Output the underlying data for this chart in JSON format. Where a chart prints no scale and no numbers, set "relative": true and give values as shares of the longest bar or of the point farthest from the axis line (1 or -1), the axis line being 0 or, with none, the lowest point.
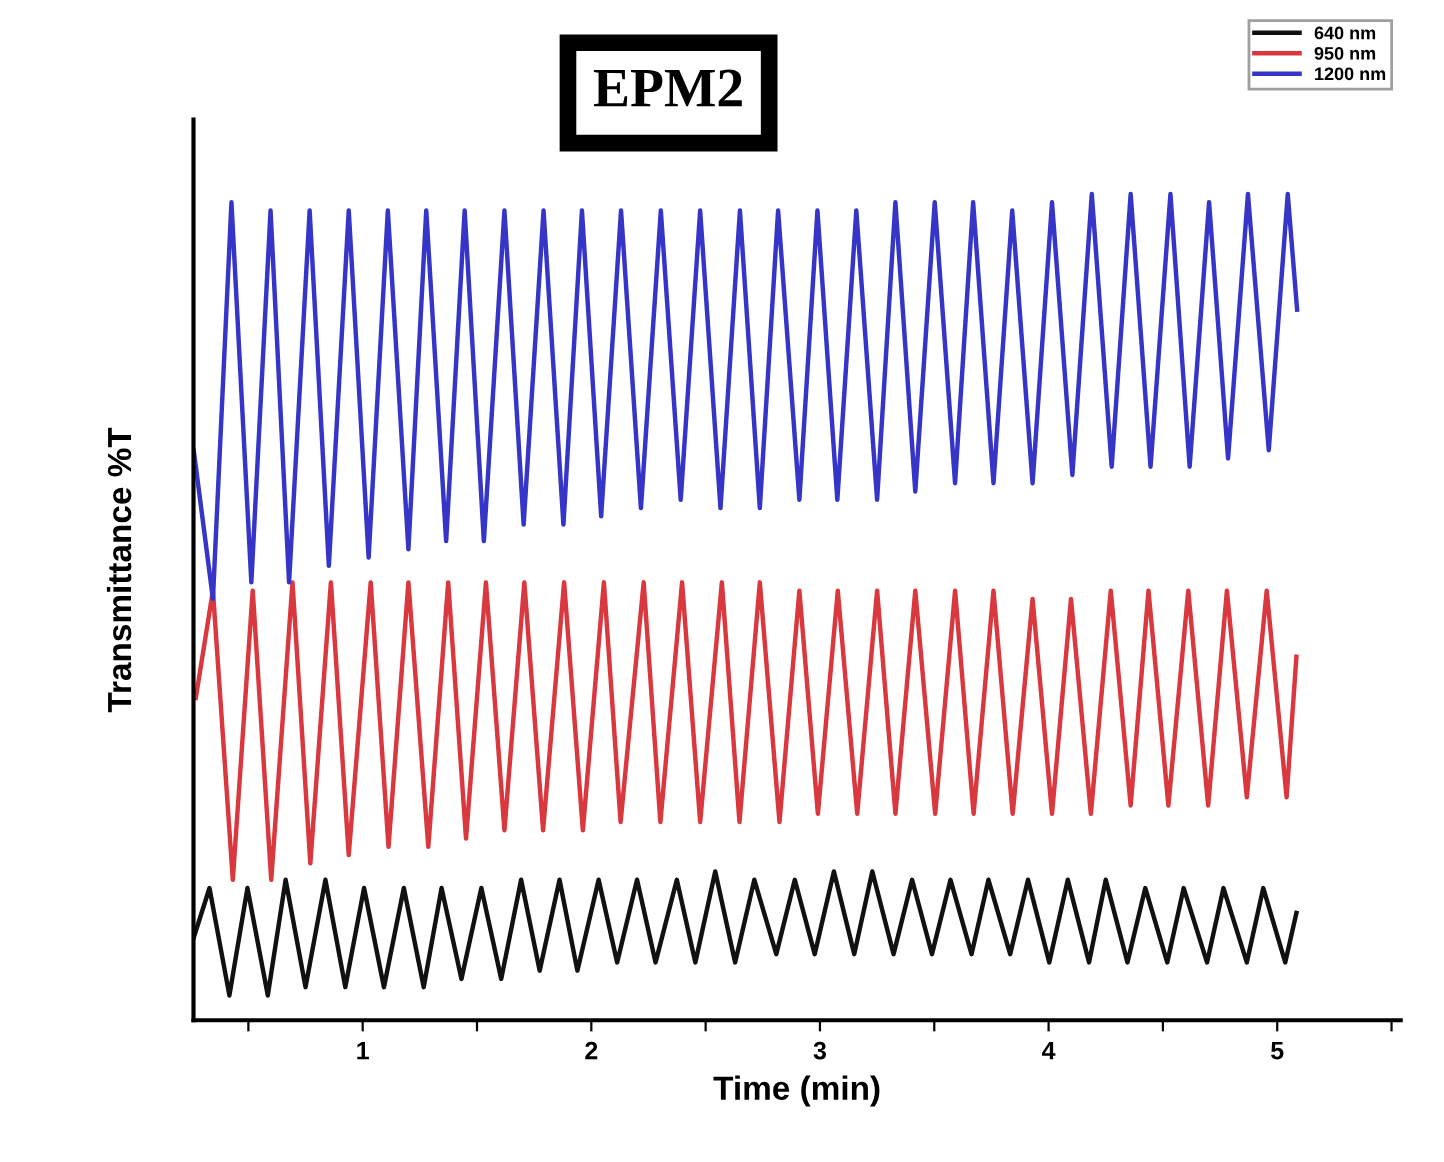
{
  "chart_data": {
    "type": "line",
    "title": "EPM2",
    "xlabel": "Time (min)",
    "ylabel": "Transmittance %T",
    "relative": true,
    "xlim": [
      0.26,
      5.54
    ],
    "xticks": [
      {
        "value": 0.5,
        "label": null
      },
      1,
      {
        "value": 1.5,
        "label": null
      },
      2,
      {
        "value": 2.5,
        "label": null
      },
      3,
      {
        "value": 3.5,
        "label": null
      },
      4,
      {
        "value": 4.5,
        "label": null
      },
      5,
      {
        "value": 5.5,
        "label": null
      }
    ],
    "legend": "top right",
    "grid": false,
    "line_style": "solid",
    "marker": "none",
    "series": [
      {
        "name": "640 nm",
        "color": "#111111",
        "x": [
          0.261,
          0.33,
          0.417,
          0.496,
          0.585,
          0.663,
          0.75,
          0.837,
          0.924,
          1.006,
          1.093,
          1.18,
          1.267,
          1.345,
          1.432,
          1.519,
          1.606,
          1.693,
          1.774,
          1.861,
          1.939,
          2.032,
          2.113,
          2.2,
          2.281,
          2.374,
          2.455,
          2.542,
          2.629,
          2.713,
          2.809,
          2.89,
          2.977,
          3.061,
          3.15,
          3.229,
          3.322,
          3.403,
          3.49,
          3.571,
          3.663,
          3.737,
          3.832,
          3.91,
          4.003,
          4.084,
          4.177,
          4.25,
          4.345,
          4.423,
          4.519,
          4.591,
          4.693,
          4.765,
          4.867,
          4.939,
          5.035,
          5.084
        ],
        "values": [
          0.1,
          0.16,
          0.03,
          0.16,
          0.03,
          0.17,
          0.04,
          0.17,
          0.04,
          0.16,
          0.04,
          0.16,
          0.04,
          0.16,
          0.05,
          0.16,
          0.05,
          0.17,
          0.06,
          0.17,
          0.06,
          0.17,
          0.07,
          0.17,
          0.07,
          0.17,
          0.07,
          0.18,
          0.07,
          0.17,
          0.08,
          0.17,
          0.08,
          0.18,
          0.08,
          0.18,
          0.08,
          0.17,
          0.08,
          0.17,
          0.08,
          0.17,
          0.08,
          0.17,
          0.07,
          0.17,
          0.07,
          0.17,
          0.07,
          0.16,
          0.07,
          0.16,
          0.07,
          0.16,
          0.07,
          0.16,
          0.07,
          0.13
        ]
      },
      {
        "name": "950 nm",
        "color": "#d9383f",
        "x": [
          0.27,
          0.345,
          0.432,
          0.519,
          0.6,
          0.693,
          0.771,
          0.861,
          0.939,
          1.035,
          1.113,
          1.2,
          1.287,
          1.374,
          1.452,
          1.539,
          1.62,
          1.707,
          1.789,
          1.881,
          1.963,
          2.055,
          2.128,
          2.229,
          2.302,
          2.397,
          2.476,
          2.571,
          2.648,
          2.737,
          2.823,
          2.91,
          2.991,
          3.078,
          3.163,
          3.25,
          3.33,
          3.417,
          3.504,
          3.591,
          3.672,
          3.759,
          3.843,
          3.93,
          4.015,
          4.098,
          4.185,
          4.272,
          4.359,
          4.437,
          4.524,
          4.611,
          4.698,
          4.78,
          4.867,
          4.954,
          5.041,
          5.084
        ],
        "values": [
          0.39,
          0.52,
          0.17,
          0.52,
          0.17,
          0.53,
          0.19,
          0.53,
          0.2,
          0.53,
          0.21,
          0.53,
          0.21,
          0.53,
          0.22,
          0.53,
          0.23,
          0.53,
          0.23,
          0.53,
          0.23,
          0.53,
          0.24,
          0.53,
          0.24,
          0.53,
          0.24,
          0.53,
          0.24,
          0.53,
          0.24,
          0.52,
          0.25,
          0.52,
          0.25,
          0.52,
          0.25,
          0.52,
          0.25,
          0.52,
          0.25,
          0.52,
          0.25,
          0.51,
          0.25,
          0.51,
          0.25,
          0.52,
          0.26,
          0.52,
          0.26,
          0.52,
          0.26,
          0.52,
          0.27,
          0.52,
          0.27,
          0.44
        ]
      },
      {
        "name": "1200 nm",
        "color": "#3535c8",
        "x": [
          0.261,
          0.345,
          0.426,
          0.513,
          0.597,
          0.678,
          0.768,
          0.852,
          0.939,
          1.026,
          1.11,
          1.2,
          1.278,
          1.365,
          1.446,
          1.53,
          1.62,
          1.704,
          1.791,
          1.878,
          1.959,
          2.043,
          2.13,
          2.217,
          2.304,
          2.391,
          2.476,
          2.565,
          2.65,
          2.737,
          2.817,
          2.91,
          2.989,
          3.076,
          3.159,
          3.25,
          3.33,
          3.417,
          3.502,
          3.591,
          3.67,
          3.759,
          3.841,
          3.93,
          4.015,
          4.104,
          4.189,
          4.276,
          4.359,
          4.446,
          4.533,
          4.617,
          4.702,
          4.785,
          4.872,
          4.963,
          5.046,
          5.087
        ],
        "values": [
          0.69,
          0.51,
          0.99,
          0.53,
          0.98,
          0.53,
          0.98,
          0.55,
          0.98,
          0.56,
          0.98,
          0.57,
          0.98,
          0.58,
          0.98,
          0.58,
          0.98,
          0.6,
          0.98,
          0.6,
          0.98,
          0.61,
          0.98,
          0.62,
          0.98,
          0.63,
          0.98,
          0.62,
          0.98,
          0.62,
          0.98,
          0.63,
          0.98,
          0.63,
          0.98,
          0.63,
          0.99,
          0.64,
          0.99,
          0.65,
          0.99,
          0.65,
          0.98,
          0.65,
          0.99,
          0.66,
          1.0,
          0.67,
          1.0,
          0.67,
          1.0,
          0.67,
          0.99,
          0.68,
          1.0,
          0.69,
          1.0,
          0.86
        ]
      }
    ]
  }
}
